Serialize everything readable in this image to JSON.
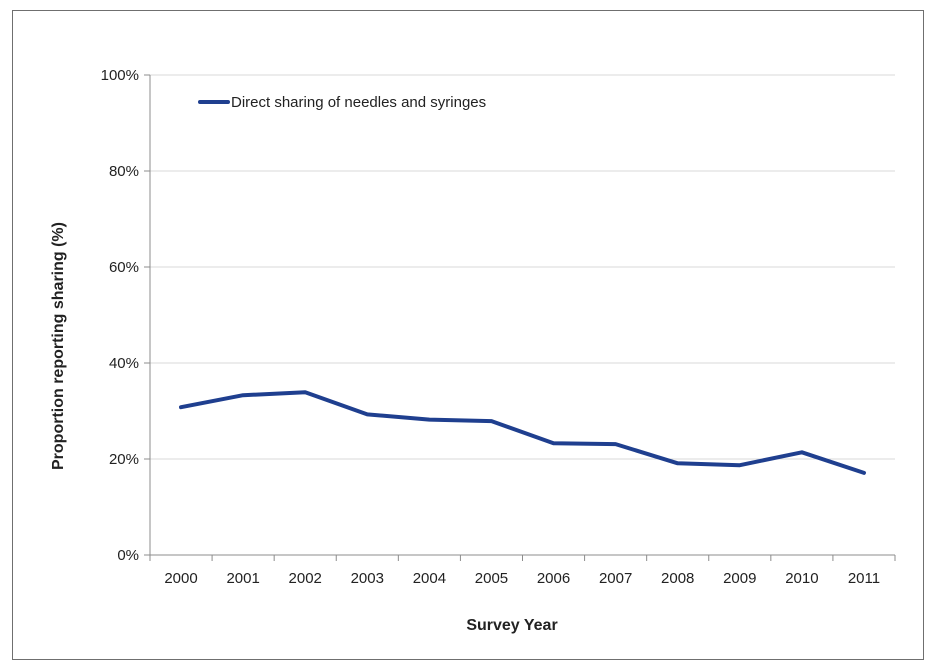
{
  "chart_data": {
    "type": "line",
    "title": "",
    "xlabel": "Survey Year",
    "ylabel": "Proportion reporting sharing (%)",
    "ylim": [
      0,
      100
    ],
    "yticks": [
      "0%",
      "20%",
      "40%",
      "60%",
      "80%",
      "100%"
    ],
    "categories": [
      "2000",
      "2001",
      "2002",
      "2003",
      "2004",
      "2005",
      "2006",
      "2007",
      "2008",
      "2009",
      "2010",
      "2011"
    ],
    "series": [
      {
        "name": "Direct sharing of needles and syringes",
        "values": [
          30.8,
          33.3,
          33.9,
          29.3,
          28.2,
          27.9,
          23.3,
          23.1,
          19.1,
          18.7,
          21.4,
          17.1
        ],
        "color": "#1f3f8f"
      }
    ],
    "grid": "horizontal",
    "legend_position": "top-left"
  }
}
